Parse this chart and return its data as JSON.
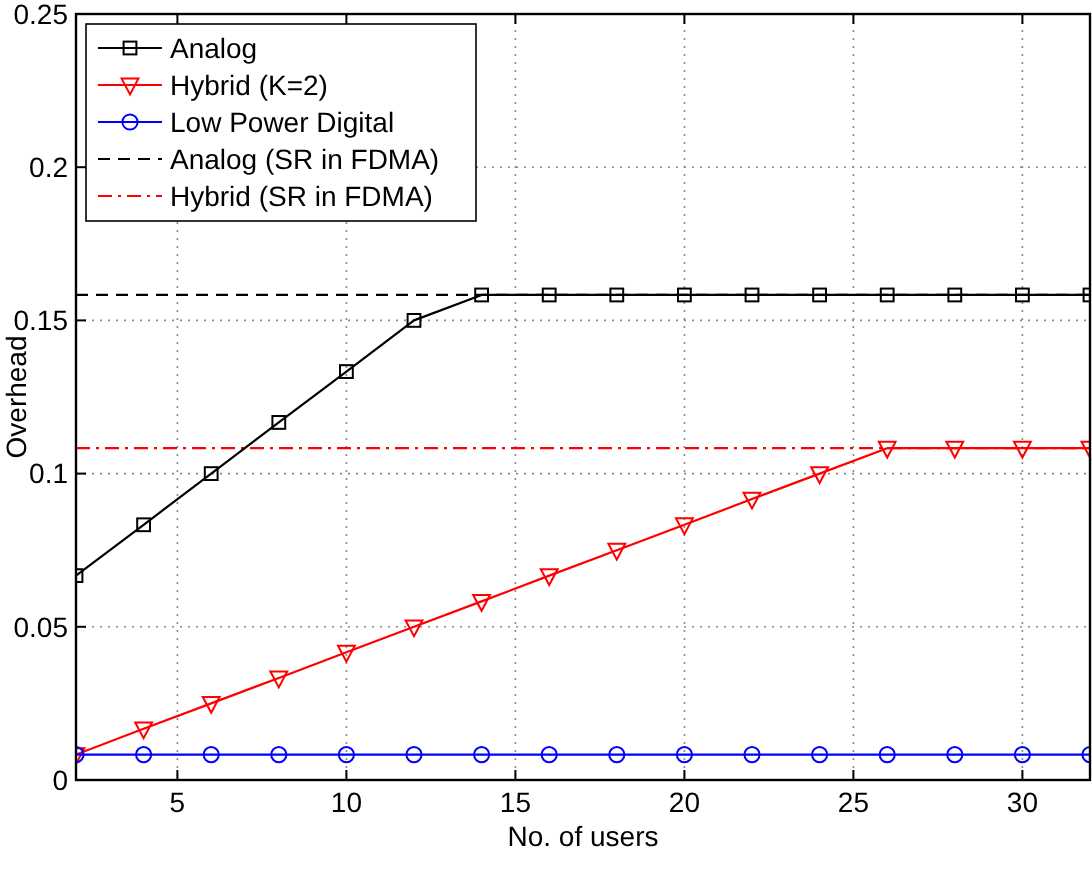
{
  "chart_data": {
    "type": "line",
    "xlabel": "No. of users",
    "ylabel": "Overhead",
    "x": [
      2,
      4,
      6,
      8,
      10,
      12,
      14,
      16,
      18,
      20,
      22,
      24,
      26,
      28,
      30,
      32
    ],
    "xlim": [
      2,
      32
    ],
    "xticks": [
      5,
      10,
      15,
      20,
      25,
      30
    ],
    "ylim": [
      0,
      0.25
    ],
    "yticks": [
      0,
      0.05,
      0.1,
      0.15,
      0.2,
      0.25
    ],
    "grid": true,
    "legend": "top left",
    "series": [
      {
        "name": "Analog",
        "color": "#000000",
        "marker": "square",
        "line_style": "solid",
        "values": [
          0.0667,
          0.0833,
          0.1,
          0.1167,
          0.1333,
          0.15,
          0.1583,
          0.1583,
          0.1583,
          0.1583,
          0.1583,
          0.1583,
          0.1583,
          0.1583,
          0.1583,
          0.1583
        ]
      },
      {
        "name": "Hybrid (K=2)",
        "color": "#ff0000",
        "marker": "triangle",
        "line_style": "solid",
        "values": [
          0.0083,
          0.0167,
          0.025,
          0.0333,
          0.0417,
          0.05,
          0.0583,
          0.0667,
          0.075,
          0.0833,
          0.0917,
          0.1,
          0.1083,
          0.1083,
          0.1083,
          0.1083
        ]
      },
      {
        "name": "Low Power Digital",
        "color": "#0000ff",
        "marker": "circle",
        "line_style": "solid",
        "values": [
          0.0083,
          0.0083,
          0.0083,
          0.0083,
          0.0083,
          0.0083,
          0.0083,
          0.0083,
          0.0083,
          0.0083,
          0.0083,
          0.0083,
          0.0083,
          0.0083,
          0.0083,
          0.0083
        ]
      }
    ],
    "ref_lines": [
      {
        "axis": "y",
        "value": 0.1583,
        "label": "Analog (SR in FDMA)",
        "color": "#000000",
        "line_style": "dashed"
      },
      {
        "axis": "y",
        "value": 0.1083,
        "label": "Hybrid (SR in FDMA)",
        "color": "#ff0000",
        "line_style": "dashdot"
      }
    ]
  }
}
